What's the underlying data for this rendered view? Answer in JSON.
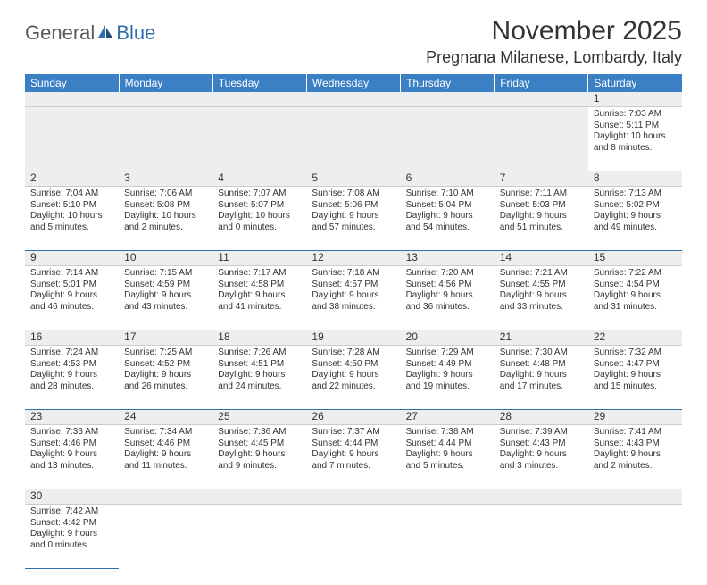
{
  "logo": {
    "part1": "General",
    "part2": "Blue"
  },
  "title": "November 2025",
  "location": "Pregnana Milanese, Lombardy, Italy",
  "colors": {
    "header_bg": "#3b7fc4",
    "header_text": "#ffffff",
    "row_border": "#2f6fab",
    "text": "#333333",
    "alt_bg": "#eeeeee"
  },
  "weekdays": [
    "Sunday",
    "Monday",
    "Tuesday",
    "Wednesday",
    "Thursday",
    "Friday",
    "Saturday"
  ],
  "weeks": [
    [
      null,
      null,
      null,
      null,
      null,
      null,
      {
        "n": "1",
        "sr": "Sunrise: 7:03 AM",
        "ss": "Sunset: 5:11 PM",
        "dl": "Daylight: 10 hours and 8 minutes."
      }
    ],
    [
      {
        "n": "2",
        "sr": "Sunrise: 7:04 AM",
        "ss": "Sunset: 5:10 PM",
        "dl": "Daylight: 10 hours and 5 minutes."
      },
      {
        "n": "3",
        "sr": "Sunrise: 7:06 AM",
        "ss": "Sunset: 5:08 PM",
        "dl": "Daylight: 10 hours and 2 minutes."
      },
      {
        "n": "4",
        "sr": "Sunrise: 7:07 AM",
        "ss": "Sunset: 5:07 PM",
        "dl": "Daylight: 10 hours and 0 minutes."
      },
      {
        "n": "5",
        "sr": "Sunrise: 7:08 AM",
        "ss": "Sunset: 5:06 PM",
        "dl": "Daylight: 9 hours and 57 minutes."
      },
      {
        "n": "6",
        "sr": "Sunrise: 7:10 AM",
        "ss": "Sunset: 5:04 PM",
        "dl": "Daylight: 9 hours and 54 minutes."
      },
      {
        "n": "7",
        "sr": "Sunrise: 7:11 AM",
        "ss": "Sunset: 5:03 PM",
        "dl": "Daylight: 9 hours and 51 minutes."
      },
      {
        "n": "8",
        "sr": "Sunrise: 7:13 AM",
        "ss": "Sunset: 5:02 PM",
        "dl": "Daylight: 9 hours and 49 minutes."
      }
    ],
    [
      {
        "n": "9",
        "sr": "Sunrise: 7:14 AM",
        "ss": "Sunset: 5:01 PM",
        "dl": "Daylight: 9 hours and 46 minutes."
      },
      {
        "n": "10",
        "sr": "Sunrise: 7:15 AM",
        "ss": "Sunset: 4:59 PM",
        "dl": "Daylight: 9 hours and 43 minutes."
      },
      {
        "n": "11",
        "sr": "Sunrise: 7:17 AM",
        "ss": "Sunset: 4:58 PM",
        "dl": "Daylight: 9 hours and 41 minutes."
      },
      {
        "n": "12",
        "sr": "Sunrise: 7:18 AM",
        "ss": "Sunset: 4:57 PM",
        "dl": "Daylight: 9 hours and 38 minutes."
      },
      {
        "n": "13",
        "sr": "Sunrise: 7:20 AM",
        "ss": "Sunset: 4:56 PM",
        "dl": "Daylight: 9 hours and 36 minutes."
      },
      {
        "n": "14",
        "sr": "Sunrise: 7:21 AM",
        "ss": "Sunset: 4:55 PM",
        "dl": "Daylight: 9 hours and 33 minutes."
      },
      {
        "n": "15",
        "sr": "Sunrise: 7:22 AM",
        "ss": "Sunset: 4:54 PM",
        "dl": "Daylight: 9 hours and 31 minutes."
      }
    ],
    [
      {
        "n": "16",
        "sr": "Sunrise: 7:24 AM",
        "ss": "Sunset: 4:53 PM",
        "dl": "Daylight: 9 hours and 28 minutes."
      },
      {
        "n": "17",
        "sr": "Sunrise: 7:25 AM",
        "ss": "Sunset: 4:52 PM",
        "dl": "Daylight: 9 hours and 26 minutes."
      },
      {
        "n": "18",
        "sr": "Sunrise: 7:26 AM",
        "ss": "Sunset: 4:51 PM",
        "dl": "Daylight: 9 hours and 24 minutes."
      },
      {
        "n": "19",
        "sr": "Sunrise: 7:28 AM",
        "ss": "Sunset: 4:50 PM",
        "dl": "Daylight: 9 hours and 22 minutes."
      },
      {
        "n": "20",
        "sr": "Sunrise: 7:29 AM",
        "ss": "Sunset: 4:49 PM",
        "dl": "Daylight: 9 hours and 19 minutes."
      },
      {
        "n": "21",
        "sr": "Sunrise: 7:30 AM",
        "ss": "Sunset: 4:48 PM",
        "dl": "Daylight: 9 hours and 17 minutes."
      },
      {
        "n": "22",
        "sr": "Sunrise: 7:32 AM",
        "ss": "Sunset: 4:47 PM",
        "dl": "Daylight: 9 hours and 15 minutes."
      }
    ],
    [
      {
        "n": "23",
        "sr": "Sunrise: 7:33 AM",
        "ss": "Sunset: 4:46 PM",
        "dl": "Daylight: 9 hours and 13 minutes."
      },
      {
        "n": "24",
        "sr": "Sunrise: 7:34 AM",
        "ss": "Sunset: 4:46 PM",
        "dl": "Daylight: 9 hours and 11 minutes."
      },
      {
        "n": "25",
        "sr": "Sunrise: 7:36 AM",
        "ss": "Sunset: 4:45 PM",
        "dl": "Daylight: 9 hours and 9 minutes."
      },
      {
        "n": "26",
        "sr": "Sunrise: 7:37 AM",
        "ss": "Sunset: 4:44 PM",
        "dl": "Daylight: 9 hours and 7 minutes."
      },
      {
        "n": "27",
        "sr": "Sunrise: 7:38 AM",
        "ss": "Sunset: 4:44 PM",
        "dl": "Daylight: 9 hours and 5 minutes."
      },
      {
        "n": "28",
        "sr": "Sunrise: 7:39 AM",
        "ss": "Sunset: 4:43 PM",
        "dl": "Daylight: 9 hours and 3 minutes."
      },
      {
        "n": "29",
        "sr": "Sunrise: 7:41 AM",
        "ss": "Sunset: 4:43 PM",
        "dl": "Daylight: 9 hours and 2 minutes."
      }
    ],
    [
      {
        "n": "30",
        "sr": "Sunrise: 7:42 AM",
        "ss": "Sunset: 4:42 PM",
        "dl": "Daylight: 9 hours and 0 minutes."
      },
      null,
      null,
      null,
      null,
      null,
      null
    ]
  ]
}
